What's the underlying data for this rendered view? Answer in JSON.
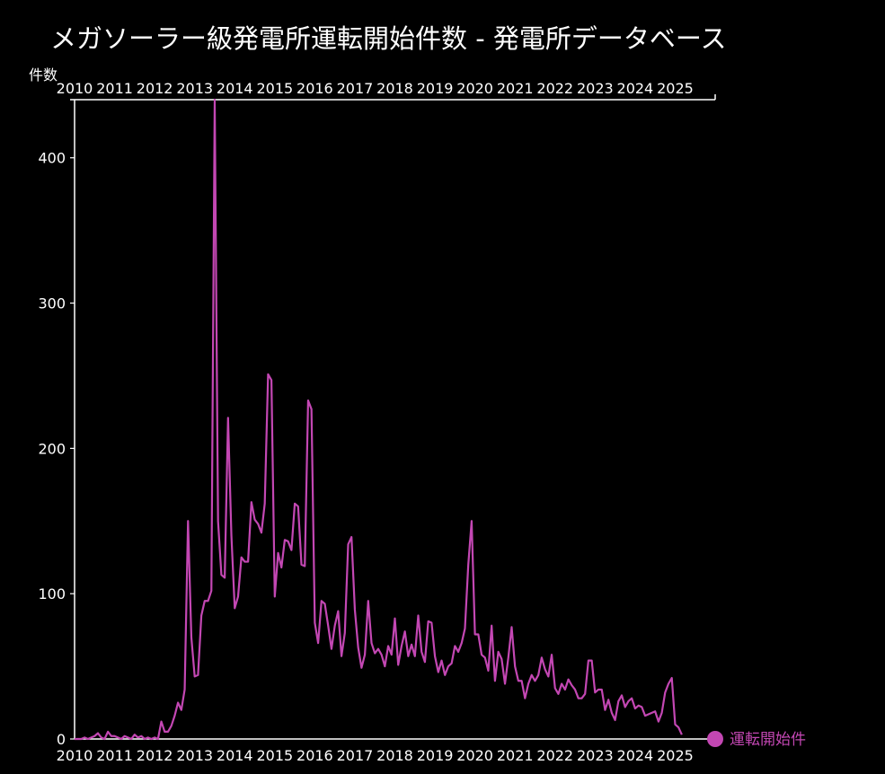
{
  "chart_data": {
    "type": "line",
    "title": "メガソーラー級発電所運転開始件数 - 発電所データベース",
    "ylabel": "件数",
    "xlabel": "",
    "ylim": [
      0,
      440
    ],
    "yticks": [
      0,
      100,
      200,
      300,
      400
    ],
    "x_range": [
      "2010-01",
      "2025-12"
    ],
    "xticks": [
      "2010",
      "2011",
      "2012",
      "2013",
      "2014",
      "2015",
      "2016",
      "2017",
      "2018",
      "2019",
      "2020",
      "2021",
      "2022",
      "2023",
      "2024",
      "2025"
    ],
    "grid": false,
    "legend_position": "bottom-right",
    "colors": {
      "series": "#c347b3",
      "background": "#000000",
      "axis": "#ffffff"
    },
    "series": [
      {
        "name": "運転開始件",
        "x_start": "2010-01",
        "x_step": "1 month",
        "values": [
          0,
          0,
          0,
          1,
          0,
          1,
          2,
          4,
          1,
          0,
          5,
          2,
          2,
          1,
          0,
          2,
          1,
          0,
          3,
          1,
          2,
          0,
          1,
          0,
          1,
          0,
          12,
          5,
          5,
          9,
          16,
          25,
          20,
          34,
          150,
          70,
          43,
          44,
          85,
          95,
          95,
          102,
          440,
          150,
          113,
          111,
          221,
          140,
          90,
          98,
          125,
          122,
          122,
          163,
          151,
          148,
          142,
          162,
          251,
          247,
          98,
          128,
          118,
          137,
          136,
          130,
          162,
          160,
          120,
          119,
          233,
          227,
          80,
          66,
          95,
          93,
          78,
          62,
          78,
          88,
          57,
          73,
          134,
          139,
          89,
          63,
          49,
          58,
          95,
          66,
          59,
          62,
          58,
          50,
          64,
          58,
          83,
          51,
          64,
          74,
          57,
          65,
          57,
          85,
          60,
          53,
          81,
          80,
          57,
          46,
          54,
          44,
          50,
          52,
          64,
          60,
          66,
          76,
          120,
          150,
          72,
          72,
          58,
          56,
          47,
          78,
          40,
          60,
          55,
          38,
          56,
          77,
          50,
          40,
          40,
          28,
          38,
          44,
          40,
          44,
          56,
          48,
          43,
          58,
          35,
          31,
          38,
          34,
          41,
          37,
          34,
          28,
          28,
          31,
          54,
          54,
          32,
          34,
          34,
          20,
          27,
          18,
          13,
          26,
          30,
          22,
          26,
          28,
          21,
          23,
          22,
          16,
          17,
          18,
          19,
          12,
          18,
          32,
          38,
          42,
          10,
          8,
          3
        ]
      }
    ]
  }
}
